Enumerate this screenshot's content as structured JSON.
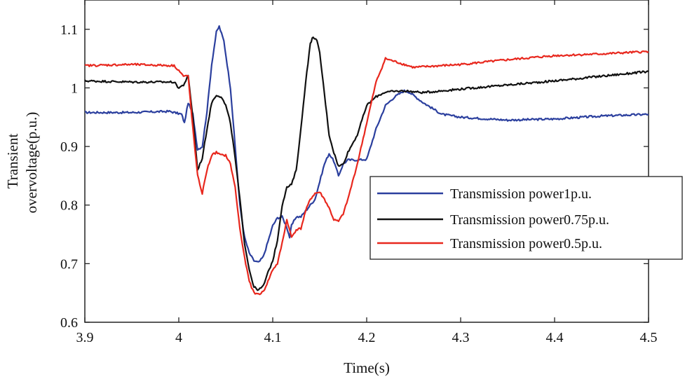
{
  "chart_data": {
    "type": "line",
    "title": "",
    "xlabel": "Time(s)",
    "ylabel_lines": [
      "Transient",
      "overvoltage(p.u.)"
    ],
    "xlim": [
      3.9,
      4.5
    ],
    "ylim": [
      0.6,
      1.15
    ],
    "x_ticks": [
      3.9,
      4.0,
      4.1,
      4.2,
      4.3,
      4.4,
      4.5
    ],
    "x_tick_labels": [
      "3.9",
      "4",
      "4.1",
      "4.2",
      "4.3",
      "4.4",
      "4.5"
    ],
    "y_ticks": [
      0.6,
      0.7,
      0.8,
      0.9,
      1.0,
      1.1
    ],
    "y_tick_labels": [
      "0.6",
      "0.7",
      "0.8",
      "0.9",
      "1",
      "1.1"
    ],
    "legend_position": "right",
    "series": [
      {
        "name": "Transmission power1p.u.",
        "color": "#2b3f9e",
        "points": [
          [
            3.9,
            0.958
          ],
          [
            3.95,
            0.958
          ],
          [
            3.99,
            0.96
          ],
          [
            4.003,
            0.955
          ],
          [
            4.006,
            0.94
          ],
          [
            4.01,
            0.975
          ],
          [
            4.015,
            0.955
          ],
          [
            4.02,
            0.895
          ],
          [
            4.025,
            0.9
          ],
          [
            4.03,
            0.96
          ],
          [
            4.035,
            1.04
          ],
          [
            4.04,
            1.095
          ],
          [
            4.043,
            1.105
          ],
          [
            4.048,
            1.08
          ],
          [
            4.055,
            1.0
          ],
          [
            4.06,
            0.9
          ],
          [
            4.065,
            0.8
          ],
          [
            4.07,
            0.745
          ],
          [
            4.075,
            0.718
          ],
          [
            4.08,
            0.705
          ],
          [
            4.085,
            0.702
          ],
          [
            4.09,
            0.712
          ],
          [
            4.095,
            0.738
          ],
          [
            4.1,
            0.765
          ],
          [
            4.105,
            0.778
          ],
          [
            4.11,
            0.78
          ],
          [
            4.115,
            0.762
          ],
          [
            4.118,
            0.745
          ],
          [
            4.12,
            0.765
          ],
          [
            4.125,
            0.78
          ],
          [
            4.13,
            0.78
          ],
          [
            4.135,
            0.79
          ],
          [
            4.14,
            0.8
          ],
          [
            4.145,
            0.81
          ],
          [
            4.15,
            0.84
          ],
          [
            4.155,
            0.87
          ],
          [
            4.16,
            0.888
          ],
          [
            4.165,
            0.875
          ],
          [
            4.17,
            0.85
          ],
          [
            4.175,
            0.87
          ],
          [
            4.18,
            0.877
          ],
          [
            4.19,
            0.877
          ],
          [
            4.2,
            0.878
          ],
          [
            4.21,
            0.93
          ],
          [
            4.22,
            0.97
          ],
          [
            4.23,
            0.985
          ],
          [
            4.24,
            0.995
          ],
          [
            4.245,
            0.993
          ],
          [
            4.26,
            0.975
          ],
          [
            4.28,
            0.955
          ],
          [
            4.3,
            0.95
          ],
          [
            4.35,
            0.945
          ],
          [
            4.4,
            0.947
          ],
          [
            4.45,
            0.952
          ],
          [
            4.5,
            0.955
          ]
        ]
      },
      {
        "name": "Transmission power0.75p.u.",
        "color": "#111111",
        "points": [
          [
            3.9,
            1.012
          ],
          [
            3.95,
            1.01
          ],
          [
            3.995,
            1.01
          ],
          [
            4.0,
            1.0
          ],
          [
            4.005,
            1.005
          ],
          [
            4.01,
            1.02
          ],
          [
            4.015,
            0.95
          ],
          [
            4.02,
            0.86
          ],
          [
            4.025,
            0.88
          ],
          [
            4.03,
            0.93
          ],
          [
            4.035,
            0.975
          ],
          [
            4.04,
            0.988
          ],
          [
            4.045,
            0.985
          ],
          [
            4.05,
            0.97
          ],
          [
            4.055,
            0.94
          ],
          [
            4.06,
            0.88
          ],
          [
            4.065,
            0.81
          ],
          [
            4.07,
            0.735
          ],
          [
            4.075,
            0.69
          ],
          [
            4.08,
            0.66
          ],
          [
            4.085,
            0.655
          ],
          [
            4.09,
            0.662
          ],
          [
            4.095,
            0.685
          ],
          [
            4.1,
            0.705
          ],
          [
            4.105,
            0.74
          ],
          [
            4.11,
            0.8
          ],
          [
            4.115,
            0.83
          ],
          [
            4.12,
            0.835
          ],
          [
            4.125,
            0.86
          ],
          [
            4.13,
            0.93
          ],
          [
            4.135,
            1.01
          ],
          [
            4.14,
            1.075
          ],
          [
            4.143,
            1.088
          ],
          [
            4.147,
            1.08
          ],
          [
            4.15,
            1.06
          ],
          [
            4.155,
            0.99
          ],
          [
            4.16,
            0.92
          ],
          [
            4.165,
            0.89
          ],
          [
            4.17,
            0.866
          ],
          [
            4.175,
            0.87
          ],
          [
            4.18,
            0.89
          ],
          [
            4.19,
            0.92
          ],
          [
            4.2,
            0.97
          ],
          [
            4.21,
            0.985
          ],
          [
            4.22,
            0.993
          ],
          [
            4.24,
            0.995
          ],
          [
            4.26,
            0.992
          ],
          [
            4.3,
            0.998
          ],
          [
            4.35,
            1.005
          ],
          [
            4.4,
            1.012
          ],
          [
            4.45,
            1.02
          ],
          [
            4.5,
            1.028
          ]
        ]
      },
      {
        "name": "Transmission power0.5p.u.",
        "color": "#e8281e",
        "points": [
          [
            3.9,
            1.038
          ],
          [
            3.95,
            1.04
          ],
          [
            3.995,
            1.038
          ],
          [
            4.0,
            1.03
          ],
          [
            4.005,
            1.02
          ],
          [
            4.01,
            1.02
          ],
          [
            4.015,
            0.93
          ],
          [
            4.02,
            0.85
          ],
          [
            4.025,
            0.82
          ],
          [
            4.03,
            0.86
          ],
          [
            4.035,
            0.885
          ],
          [
            4.04,
            0.89
          ],
          [
            4.045,
            0.885
          ],
          [
            4.05,
            0.885
          ],
          [
            4.055,
            0.87
          ],
          [
            4.06,
            0.83
          ],
          [
            4.065,
            0.76
          ],
          [
            4.07,
            0.71
          ],
          [
            4.075,
            0.67
          ],
          [
            4.08,
            0.65
          ],
          [
            4.085,
            0.648
          ],
          [
            4.09,
            0.652
          ],
          [
            4.095,
            0.67
          ],
          [
            4.1,
            0.69
          ],
          [
            4.105,
            0.7
          ],
          [
            4.11,
            0.735
          ],
          [
            4.115,
            0.775
          ],
          [
            4.12,
            0.745
          ],
          [
            4.125,
            0.758
          ],
          [
            4.13,
            0.76
          ],
          [
            4.135,
            0.79
          ],
          [
            4.14,
            0.81
          ],
          [
            4.145,
            0.82
          ],
          [
            4.15,
            0.822
          ],
          [
            4.155,
            0.81
          ],
          [
            4.16,
            0.795
          ],
          [
            4.165,
            0.775
          ],
          [
            4.17,
            0.772
          ],
          [
            4.175,
            0.785
          ],
          [
            4.18,
            0.81
          ],
          [
            4.19,
            0.87
          ],
          [
            4.2,
            0.94
          ],
          [
            4.21,
            1.01
          ],
          [
            4.22,
            1.05
          ],
          [
            4.23,
            1.045
          ],
          [
            4.25,
            1.035
          ],
          [
            4.3,
            1.04
          ],
          [
            4.35,
            1.048
          ],
          [
            4.4,
            1.055
          ],
          [
            4.45,
            1.058
          ],
          [
            4.5,
            1.062
          ]
        ]
      }
    ]
  }
}
